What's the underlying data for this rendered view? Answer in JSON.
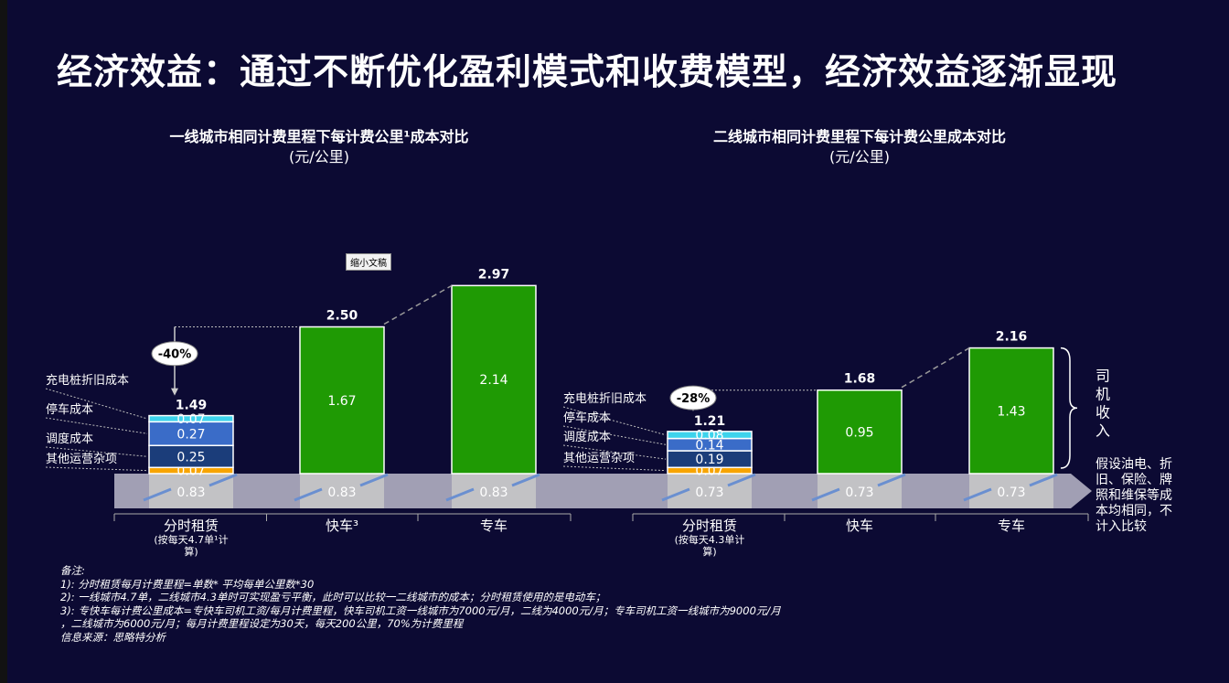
{
  "title": "经济效益：通过不断优化盈利模式和收费模型，经济效益逐渐显现",
  "tooltip": "缩小文稿",
  "colors": {
    "background": "#0c0a33",
    "green": "#1f9a04",
    "cyan": "#3dd3ec",
    "blue": "#3a6cc8",
    "navy": "#1b3d7a",
    "orange": "#f7a400",
    "base": "#c8c8c8",
    "arrow": "#a19fb4"
  },
  "chart_data": [
    {
      "type": "bar",
      "title": "一线城市相同计费里程下每计费公里¹成本对比",
      "unit": "(元/公里)",
      "categories": [
        "分时租赁",
        "快车³",
        "专车"
      ],
      "category_notes": [
        "(按每天4.7单¹计算)",
        "",
        ""
      ],
      "ylim": [
        0,
        3.2
      ],
      "base_value": 0.83,
      "stack_labels": [
        "充电桩折旧成本",
        "停车成本",
        "调度成本",
        "其他运营杂项"
      ],
      "stacked": [
        {
          "name": "其他运营杂项",
          "value": 0.07
        },
        {
          "name": "调度成本",
          "value": 0.25
        },
        {
          "name": "停车成本",
          "value": 0.27
        },
        {
          "name": "充电桩折旧成本",
          "value": 0.07
        }
      ],
      "driver_income": [
        1.67,
        2.14
      ],
      "totals": [
        1.49,
        2.5,
        2.97
      ],
      "total_labels": [
        "1.49",
        "2.50",
        "2.97"
      ],
      "reduction": "-40%"
    },
    {
      "type": "bar",
      "title": "二线城市相同计费里程下每计费公里成本对比",
      "unit": "(元/公里)",
      "categories": [
        "分时租赁",
        "快车",
        "专车"
      ],
      "category_notes": [
        "(按每天4.3单计算)",
        "",
        ""
      ],
      "ylim": [
        0,
        3.2
      ],
      "base_value": 0.73,
      "stack_labels": [
        "充电桩折旧成本",
        "停车成本",
        "调度成本",
        "其他运营杂项"
      ],
      "stacked": [
        {
          "name": "其他运营杂项",
          "value": 0.07
        },
        {
          "name": "调度成本",
          "value": 0.19
        },
        {
          "name": "停车成本",
          "value": 0.14
        },
        {
          "name": "充电桩折旧成本",
          "value": 0.08
        }
      ],
      "driver_income": [
        0.95,
        1.43
      ],
      "totals": [
        1.21,
        1.68,
        2.16
      ],
      "total_labels": [
        "1.21",
        "1.68",
        "2.16"
      ],
      "reduction": "-28%",
      "brace_label": "司机收入",
      "base_note": "假设油电、折旧、保险、牌照和维保等成本均相同，不计入比较"
    }
  ],
  "notes": [
    "备注:",
    "1):  分时租赁每月计费里程=单数* 平均每单公里数*30",
    "2):  一线城市4.7单，二线城市4.3单时可实现盈亏平衡，此时可以比较一二线城市的成本；分时租赁使用的是电动车；",
    "3):  专快车每计费公里成本=专快车司机工资/每月计费里程，快车司机工资一线城市为7000元/月，二线为4000元/月；专车司机工资一线城市为9000元/月",
    "，二线城市为6000元/月；每月计费里程设定为30天，每天200公里，70%为计费里程",
    "信息来源：思略特分析"
  ]
}
